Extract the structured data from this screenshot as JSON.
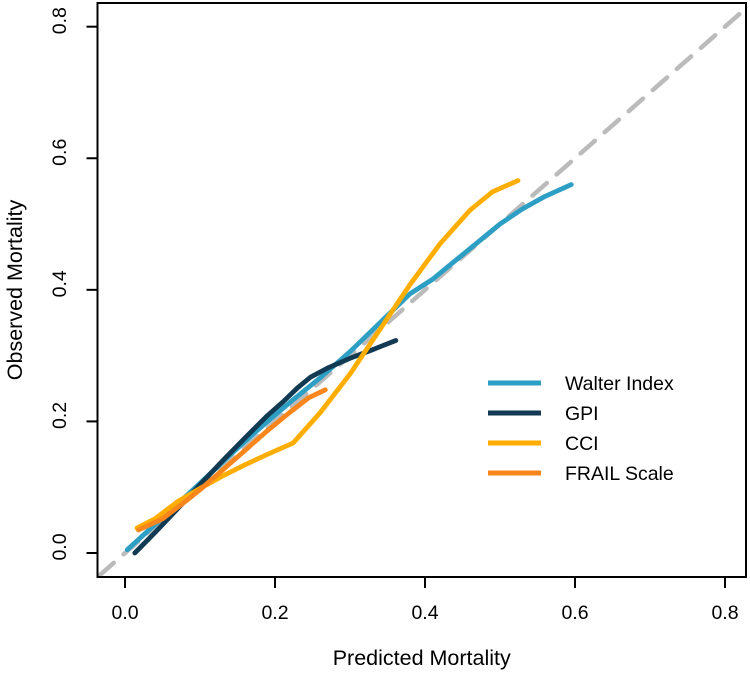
{
  "chart_data": {
    "type": "line",
    "title": "",
    "xlabel": "Predicted Mortality",
    "ylabel": "Observed Mortality",
    "xlim": [
      -0.0367,
      0.828
    ],
    "ylim": [
      -0.0365,
      0.836
    ],
    "x_ticks": [
      0.0,
      0.2,
      0.4,
      0.6,
      0.8
    ],
    "x_tick_labels": [
      "0.0",
      "0.2",
      "0.4",
      "0.6",
      "0.8"
    ],
    "y_ticks": [
      0.0,
      0.2,
      0.4,
      0.6,
      0.8
    ],
    "y_tick_labels": [
      "0.0",
      "0.2",
      "0.4",
      "0.6",
      "0.8"
    ],
    "grid": false,
    "axis_color": "#000000",
    "legend_position": "inside-right-middle",
    "reference_line": {
      "name": "identity-diagonal",
      "style": "dashed",
      "color": "#bbbbbb",
      "points": [
        [
          -0.034,
          -0.034
        ],
        [
          0.822,
          0.822
        ]
      ]
    },
    "series": [
      {
        "name": "Walter Index",
        "color": "#2d9fc4",
        "points": [
          [
            0.003,
            0.005
          ],
          [
            0.03,
            0.033
          ],
          [
            0.06,
            0.064
          ],
          [
            0.1,
            0.106
          ],
          [
            0.14,
            0.149
          ],
          [
            0.18,
            0.19
          ],
          [
            0.22,
            0.229
          ],
          [
            0.26,
            0.266
          ],
          [
            0.3,
            0.306
          ],
          [
            0.34,
            0.35
          ],
          [
            0.38,
            0.394
          ],
          [
            0.41,
            0.416
          ],
          [
            0.44,
            0.444
          ],
          [
            0.47,
            0.472
          ],
          [
            0.5,
            0.5
          ],
          [
            0.53,
            0.523
          ],
          [
            0.56,
            0.542
          ],
          [
            0.595,
            0.56
          ]
        ]
      },
      {
        "name": "GPI",
        "color": "#123a52",
        "points": [
          [
            0.013,
            0.0
          ],
          [
            0.04,
            0.031
          ],
          [
            0.07,
            0.067
          ],
          [
            0.1,
            0.104
          ],
          [
            0.13,
            0.14
          ],
          [
            0.16,
            0.175
          ],
          [
            0.19,
            0.209
          ],
          [
            0.21,
            0.229
          ],
          [
            0.23,
            0.251
          ],
          [
            0.247,
            0.267
          ],
          [
            0.27,
            0.281
          ],
          [
            0.3,
            0.296
          ],
          [
            0.33,
            0.309
          ],
          [
            0.361,
            0.323
          ]
        ]
      },
      {
        "name": "CCI",
        "color": "#ffae00",
        "points": [
          [
            0.016,
            0.038
          ],
          [
            0.04,
            0.052
          ],
          [
            0.07,
            0.078
          ],
          [
            0.1,
            0.098
          ],
          [
            0.13,
            0.117
          ],
          [
            0.16,
            0.134
          ],
          [
            0.19,
            0.15
          ],
          [
            0.224,
            0.167
          ],
          [
            0.26,
            0.213
          ],
          [
            0.3,
            0.272
          ],
          [
            0.34,
            0.34
          ],
          [
            0.38,
            0.408
          ],
          [
            0.42,
            0.47
          ],
          [
            0.46,
            0.521
          ],
          [
            0.49,
            0.549
          ],
          [
            0.524,
            0.566
          ]
        ]
      },
      {
        "name": "FRAIL Scale",
        "color": "#f8861d",
        "points": [
          [
            0.018,
            0.035
          ],
          [
            0.05,
            0.052
          ],
          [
            0.08,
            0.078
          ],
          [
            0.1,
            0.096
          ],
          [
            0.13,
            0.126
          ],
          [
            0.16,
            0.156
          ],
          [
            0.19,
            0.186
          ],
          [
            0.22,
            0.214
          ],
          [
            0.245,
            0.236
          ],
          [
            0.267,
            0.248
          ]
        ]
      }
    ]
  }
}
